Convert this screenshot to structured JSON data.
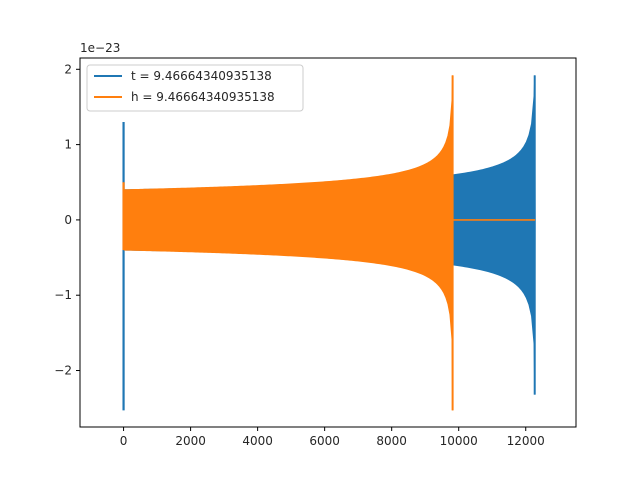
{
  "chart_data": {
    "type": "line",
    "title": "",
    "xlabel": "",
    "ylabel": "",
    "y_offset_label": "1e−23",
    "xlim": [
      -1300,
      13500
    ],
    "ylim": [
      -2.75,
      2.15
    ],
    "x_ticks": [
      0,
      2000,
      4000,
      6000,
      8000,
      10000,
      12000
    ],
    "x_tick_labels": [
      "0",
      "2000",
      "4000",
      "6000",
      "8000",
      "10000",
      "12000"
    ],
    "y_ticks": [
      2,
      1,
      0,
      -1,
      -2
    ],
    "y_tick_labels": [
      "2",
      "1",
      "0",
      "−1",
      "−2"
    ],
    "grid": false,
    "legend_position": "upper-left",
    "series": [
      {
        "name": "t = 9.46664340935138",
        "color": "#1f77b4",
        "envelope": {
          "x_start": 20,
          "x_end": 12280,
          "amp_start": 0.4,
          "amp_end": 2.3,
          "burst_x": 0,
          "burst_values": [
            1.3,
            -2.53
          ],
          "end_values": [
            1.92,
            -2.32
          ],
          "trailing_zero": false
        }
      },
      {
        "name": "h = 9.46664340935138",
        "color": "#ff7f0e",
        "envelope": {
          "x_start": 20,
          "x_end": 9830,
          "amp_start": 0.4,
          "amp_end": 2.5,
          "burst_x": 0,
          "burst_values": [
            0.5,
            -0.4
          ],
          "end_values": [
            1.92,
            -2.53
          ],
          "trailing_zero": true,
          "trailing_zero_end": 12280
        }
      }
    ]
  }
}
